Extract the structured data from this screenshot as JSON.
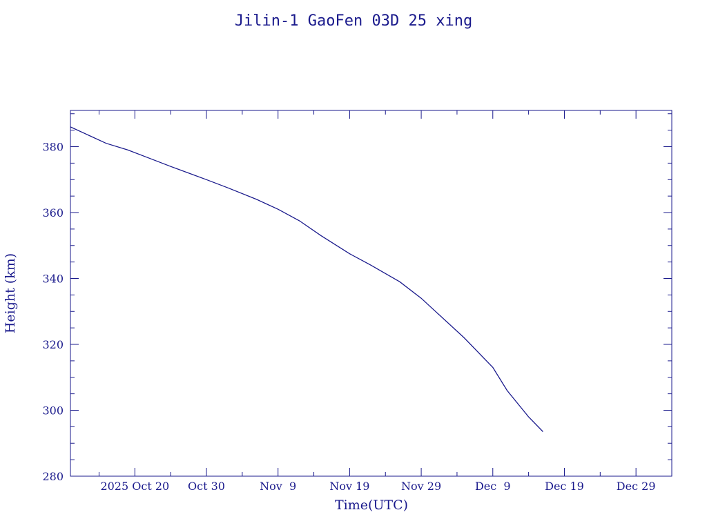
{
  "chart_data": {
    "type": "line",
    "title": "Jilin-1 GaoFen 03D 25 xing",
    "xlabel": "Time(UTC)",
    "ylabel": "Height (km)",
    "xlim": [
      "2025-10-11",
      "2026-01-03"
    ],
    "ylim": [
      280,
      391
    ],
    "x_ticks": [
      {
        "date": "2025-10-20",
        "label": "2025 Oct 20"
      },
      {
        "date": "2025-10-30",
        "label": "Oct 30"
      },
      {
        "date": "2025-11-09",
        "label": "Nov  9"
      },
      {
        "date": "2025-11-19",
        "label": "Nov 19"
      },
      {
        "date": "2025-11-29",
        "label": "Nov 29"
      },
      {
        "date": "2025-12-09",
        "label": "Dec  9"
      },
      {
        "date": "2025-12-19",
        "label": "Dec 19"
      },
      {
        "date": "2025-12-29",
        "label": "Dec 29"
      }
    ],
    "y_ticks": [
      280,
      300,
      320,
      340,
      360,
      380
    ],
    "y_minor_step": 5,
    "x_minor_step_days": 5,
    "grid": false,
    "line_color": "#1a1a8c",
    "series": [
      {
        "x": [
          "2025-10-11",
          "2025-10-16",
          "2025-10-19",
          "2025-10-22",
          "2025-10-25",
          "2025-10-30",
          "2025-11-02",
          "2025-11-06",
          "2025-11-09",
          "2025-11-12",
          "2025-11-15",
          "2025-11-19",
          "2025-11-22",
          "2025-11-26",
          "2025-11-29",
          "2025-12-01",
          "2025-12-05",
          "2025-12-09",
          "2025-12-11",
          "2025-12-14",
          "2025-12-16"
        ],
        "y": [
          386,
          381,
          379,
          376.5,
          374,
          370,
          367.5,
          364,
          361,
          357.5,
          353,
          347.5,
          344,
          339,
          334,
          330,
          322,
          313,
          306,
          298,
          293.5
        ]
      }
    ]
  }
}
